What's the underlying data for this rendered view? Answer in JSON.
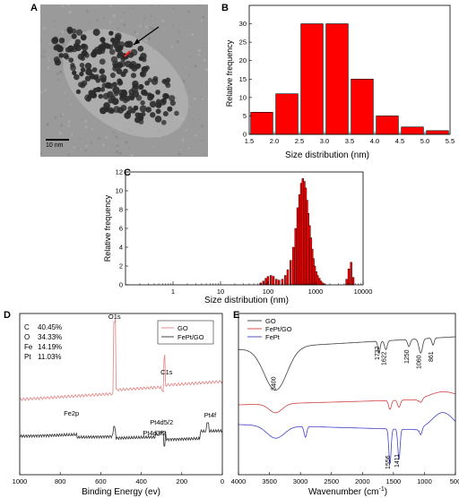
{
  "panels": {
    "A": {
      "label": "A",
      "scale_bar": "10 nm"
    },
    "B": {
      "label": "B",
      "chart_data": {
        "type": "bar",
        "categories": [
          "1.75",
          "2.25",
          "2.75",
          "3.25",
          "3.75",
          "4.25",
          "4.75",
          "5.25"
        ],
        "bin_centers": [
          1.75,
          2.25,
          2.75,
          3.25,
          3.75,
          4.25,
          4.75,
          5.25
        ],
        "values": [
          6,
          11,
          30,
          30,
          15,
          5,
          2,
          1
        ],
        "xlabel": "Size distribution (nm)",
        "ylabel": "Relative frequency",
        "xlim": [
          1.5,
          5.5
        ],
        "ylim": [
          0,
          35
        ],
        "xticks": [
          "1.5",
          "2.0",
          "2.5",
          "3.0",
          "3.5",
          "4.0",
          "4.5",
          "5.0",
          "5.5"
        ],
        "yticks": [
          "0",
          "5",
          "10",
          "15",
          "20",
          "25",
          "30"
        ],
        "color": "#ff0000"
      }
    },
    "C": {
      "label": "C",
      "chart_data": {
        "type": "bar",
        "x_scale": "log",
        "x": [
          70,
          80,
          90,
          100,
          115,
          130,
          150,
          170,
          200,
          230,
          260,
          300,
          340,
          380,
          420,
          460,
          500,
          540,
          580,
          620,
          660,
          700,
          750,
          800,
          850,
          900,
          960,
          1030,
          1100,
          1200,
          1300,
          1420,
          1550,
          4500,
          5000,
          5600,
          6200
        ],
        "values": [
          0.2,
          0.4,
          0.7,
          0.9,
          1.0,
          0.9,
          0.6,
          0.5,
          0.6,
          1.0,
          1.6,
          2.6,
          4.0,
          6.0,
          8.2,
          9.6,
          10.8,
          11.3,
          11.0,
          10.3,
          9.0,
          7.6,
          6.3,
          5.0,
          3.8,
          2.8,
          2.0,
          1.4,
          1.0,
          0.7,
          0.4,
          0.2,
          0.1,
          0.6,
          1.7,
          2.4,
          0.8
        ],
        "xlabel": "Size distribution (nm)",
        "ylabel": "Relative frequency",
        "xlim": [
          0.1,
          10000
        ],
        "ylim": [
          0,
          12
        ],
        "xticks": [
          "1",
          "10",
          "100",
          "1000",
          "10000"
        ],
        "yticks": [
          "0",
          "2",
          "4",
          "6",
          "8",
          "10",
          "12"
        ],
        "color": "#ff0000"
      }
    },
    "D": {
      "label": "D",
      "chart_data": {
        "type": "line",
        "xlabel": "Binding Energy (ev)",
        "xlim": [
          1000,
          0
        ],
        "xticks": [
          "1000",
          "800",
          "600",
          "400",
          "200",
          "0"
        ],
        "series": [
          {
            "name": "GO",
            "color": "#e08080"
          },
          {
            "name": "FePt/GO",
            "color": "#303030"
          }
        ],
        "peak_labels": [
          "O1s",
          "C1s",
          "Fe2p",
          "Pt4d5/2",
          "Pt4d3/2",
          "Pt4f"
        ],
        "composition": [
          {
            "element": "C",
            "value": "40.45%"
          },
          {
            "element": "O",
            "value": "34.33%"
          },
          {
            "element": "Fe",
            "value": "14.19%"
          },
          {
            "element": "Pt",
            "value": "11.03%"
          }
        ]
      }
    },
    "E": {
      "label": "E",
      "chart_data": {
        "type": "line",
        "xlabel": "Wavenumber (cm",
        "xlabel_sup": "-1",
        "xlabel_end": ")",
        "xlim": [
          4000,
          500
        ],
        "xticks": [
          "4000",
          "3500",
          "3000",
          "2500",
          "2000",
          "1500",
          "1000",
          "500"
        ],
        "series": [
          {
            "name": "GO",
            "color": "#404040"
          },
          {
            "name": "FePt/GO",
            "color": "#d04040"
          },
          {
            "name": "FePt",
            "color": "#4040c8"
          }
        ],
        "peak_labels": [
          "3400",
          "1732",
          "1622",
          "1250",
          "1060",
          "861",
          "1556",
          "1411"
        ]
      }
    }
  }
}
